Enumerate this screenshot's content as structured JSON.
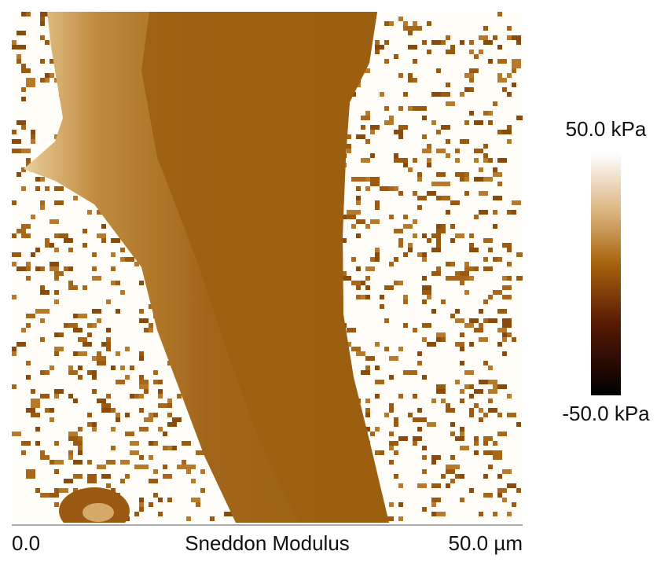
{
  "image": {
    "axis_start": "0.0",
    "title": "Sneddon Modulus",
    "axis_end": "50.0 µm"
  },
  "colorbar": {
    "max_label": "50.0 kPa",
    "min_label": "-50.0 kPa"
  }
}
